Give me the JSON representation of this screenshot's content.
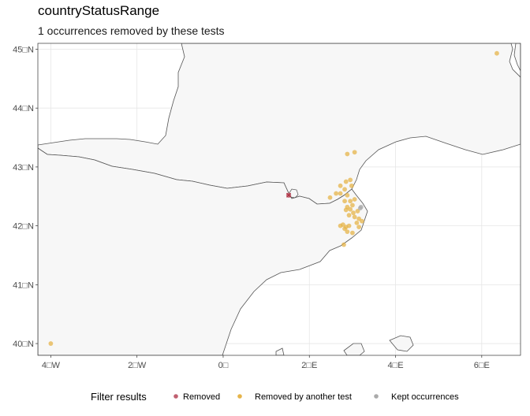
{
  "title": "countryStatusRange",
  "subtitle": "1 occurrences removed by these tests",
  "axes": {
    "x_ticks": [
      {
        "lon": -4,
        "label": "4□W"
      },
      {
        "lon": -2,
        "label": "2□W"
      },
      {
        "lon": 0,
        "label": "0□"
      },
      {
        "lon": 2,
        "label": "2□E"
      },
      {
        "lon": 4,
        "label": "4□E"
      },
      {
        "lon": 6,
        "label": "6□E"
      }
    ],
    "y_ticks": [
      {
        "lat": 45,
        "label": "45□N"
      },
      {
        "lat": 44,
        "label": "44□N"
      },
      {
        "lat": 43,
        "label": "43□N"
      },
      {
        "lat": 42,
        "label": "42□N"
      },
      {
        "lat": 41,
        "label": "41□N"
      },
      {
        "lat": 40,
        "label": "40□N"
      }
    ],
    "xlim": [
      -4.3,
      6.9
    ],
    "ylim": [
      39.8,
      45.1
    ]
  },
  "colors": {
    "removed": "#c06070",
    "removed_by_another": "#e6b44a",
    "kept": "#aaaaaa",
    "land": "#f7f7f7",
    "border": "#555555",
    "grid": "#e6e6e6"
  },
  "legend": {
    "title": "Filter results",
    "items": [
      {
        "key": "removed",
        "label": "Removed"
      },
      {
        "key": "removed_by_another",
        "label": "Removed by another test"
      },
      {
        "key": "kept",
        "label": "Kept occurrences"
      }
    ]
  },
  "chart_data": {
    "type": "scatter",
    "title": "countryStatusRange",
    "subtitle": "1 occurrences removed by these tests",
    "xlim": [
      -4.3,
      6.9
    ],
    "ylim": [
      39.8,
      45.1
    ],
    "grid": true,
    "legend_position": "bottom",
    "series": [
      {
        "name": "Removed",
        "points": [
          [
            1.52,
            42.52
          ]
        ]
      },
      {
        "name": "Removed by another test",
        "points": [
          [
            -4.0,
            40.0
          ],
          [
            6.35,
            44.93
          ],
          [
            2.88,
            43.22
          ],
          [
            3.05,
            43.25
          ],
          [
            2.85,
            42.75
          ],
          [
            2.95,
            42.78
          ],
          [
            2.72,
            42.68
          ],
          [
            2.82,
            42.62
          ],
          [
            2.98,
            42.68
          ],
          [
            2.62,
            42.55
          ],
          [
            2.72,
            42.55
          ],
          [
            2.88,
            42.52
          ],
          [
            2.48,
            42.48
          ],
          [
            2.95,
            42.42
          ],
          [
            3.05,
            42.45
          ],
          [
            2.82,
            42.42
          ],
          [
            3.0,
            42.35
          ],
          [
            2.88,
            42.32
          ],
          [
            2.95,
            42.28
          ],
          [
            3.02,
            42.22
          ],
          [
            3.12,
            42.25
          ],
          [
            2.85,
            42.27
          ],
          [
            3.05,
            42.15
          ],
          [
            3.15,
            42.12
          ],
          [
            2.92,
            42.18
          ],
          [
            2.78,
            42.02
          ],
          [
            2.85,
            41.98
          ],
          [
            2.82,
            41.95
          ],
          [
            2.72,
            42.0
          ],
          [
            2.92,
            42.0
          ],
          [
            2.88,
            41.9
          ],
          [
            3.0,
            41.88
          ],
          [
            3.15,
            41.98
          ],
          [
            3.22,
            42.08
          ],
          [
            3.1,
            42.05
          ],
          [
            2.8,
            41.68
          ]
        ]
      },
      {
        "name": "Kept occurrences",
        "points": [
          [
            3.2,
            42.32
          ],
          [
            3.18,
            42.3
          ]
        ]
      }
    ]
  }
}
